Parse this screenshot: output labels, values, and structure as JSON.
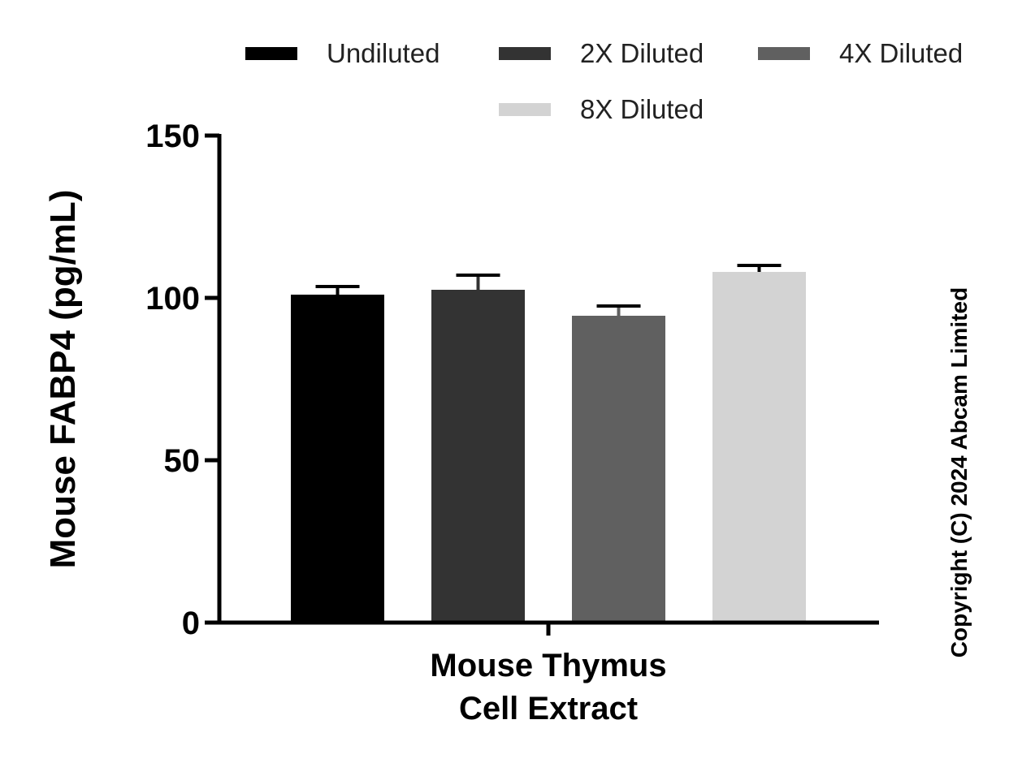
{
  "chart_data": {
    "type": "bar",
    "categories": [
      "Mouse Thymus Cell Extract"
    ],
    "category_lines": [
      "Mouse Thymus",
      "Cell Extract"
    ],
    "series": [
      {
        "name": "Undiluted",
        "values": [
          101
        ],
        "error": [
          2.5
        ],
        "color": "#000000"
      },
      {
        "name": "2X Diluted",
        "values": [
          102.5
        ],
        "error": [
          4.5
        ],
        "color": "#333333"
      },
      {
        "name": "4X Diluted",
        "values": [
          94.5
        ],
        "error": [
          3
        ],
        "color": "#606060"
      },
      {
        "name": "8X Diluted",
        "values": [
          108
        ],
        "error": [
          2
        ],
        "color": "#d3d3d3"
      }
    ],
    "ylabel": "Mouse FABP4 (pg/mL)",
    "ylim": [
      0,
      150
    ],
    "yticks": [
      "0",
      "50",
      "100",
      "150"
    ],
    "yticks_values": [
      0,
      50,
      100,
      150
    ],
    "legend_position": "top",
    "grid": false
  },
  "copyright": "Copyright (C) 2024 Abcam Limited"
}
